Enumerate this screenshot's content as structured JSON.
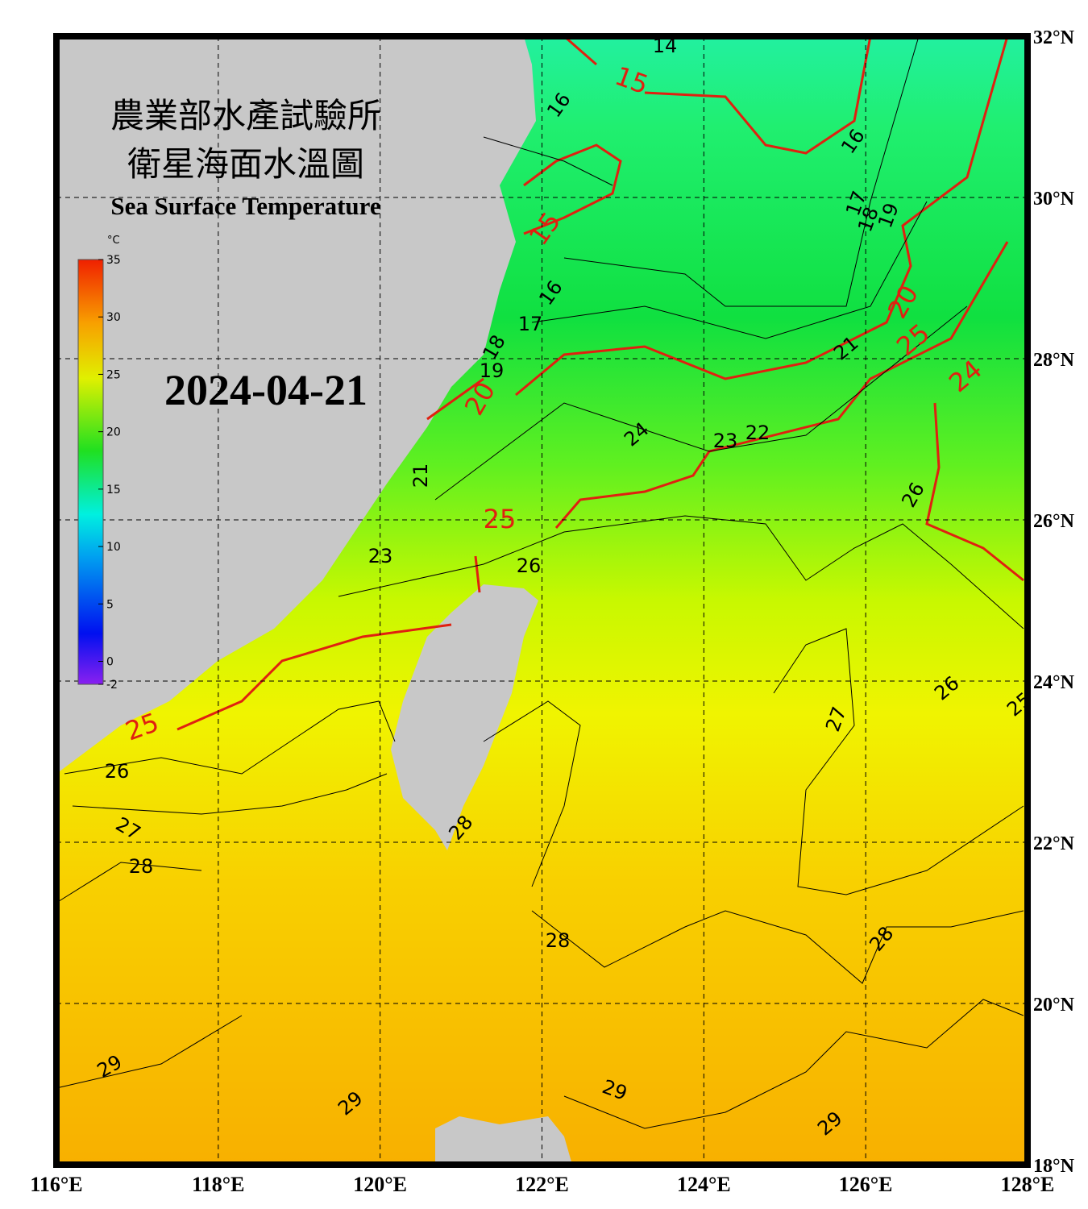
{
  "title": "農業部水產試驗所",
  "subtitle": "衛星海面水溫圖",
  "english_title": "Sea Surface Temperature",
  "date": "2024-04-21",
  "colorbar": {
    "unit": "°C",
    "ticks": [
      35,
      30,
      25,
      20,
      15,
      10,
      5,
      0,
      -2
    ],
    "range": [
      -2,
      35
    ]
  },
  "lon_ticks": [
    {
      "value": 116,
      "label": "116°E"
    },
    {
      "value": 118,
      "label": "118°E"
    },
    {
      "value": 120,
      "label": "120°E"
    },
    {
      "value": 122,
      "label": "122°E"
    },
    {
      "value": 124,
      "label": "124°E"
    },
    {
      "value": 126,
      "label": "126°E"
    },
    {
      "value": 128,
      "label": "128°E"
    }
  ],
  "lat_ticks": [
    {
      "value": 32,
      "label": "32°N"
    },
    {
      "value": 30,
      "label": "30°N"
    },
    {
      "value": 28,
      "label": "28°N"
    },
    {
      "value": 26,
      "label": "26°N"
    },
    {
      "value": 24,
      "label": "24°N"
    },
    {
      "value": 22,
      "label": "22°N"
    },
    {
      "value": 20,
      "label": "20°N"
    },
    {
      "value": 18,
      "label": "18°N"
    }
  ],
  "lon_range": [
    116,
    128
  ],
  "lat_range": [
    18,
    32
  ],
  "contour_labels": [
    "14",
    "15",
    "16",
    "16",
    "16",
    "15",
    "17",
    "18",
    "19",
    "17",
    "18",
    "19",
    "20",
    "20",
    "21",
    "25",
    "25",
    "24",
    "24",
    "23",
    "22",
    "21",
    "26",
    "25",
    "23",
    "26",
    "25",
    "26",
    "26",
    "27",
    "27",
    "28",
    "28",
    "28",
    "28",
    "29",
    "29",
    "29",
    "29"
  ]
}
